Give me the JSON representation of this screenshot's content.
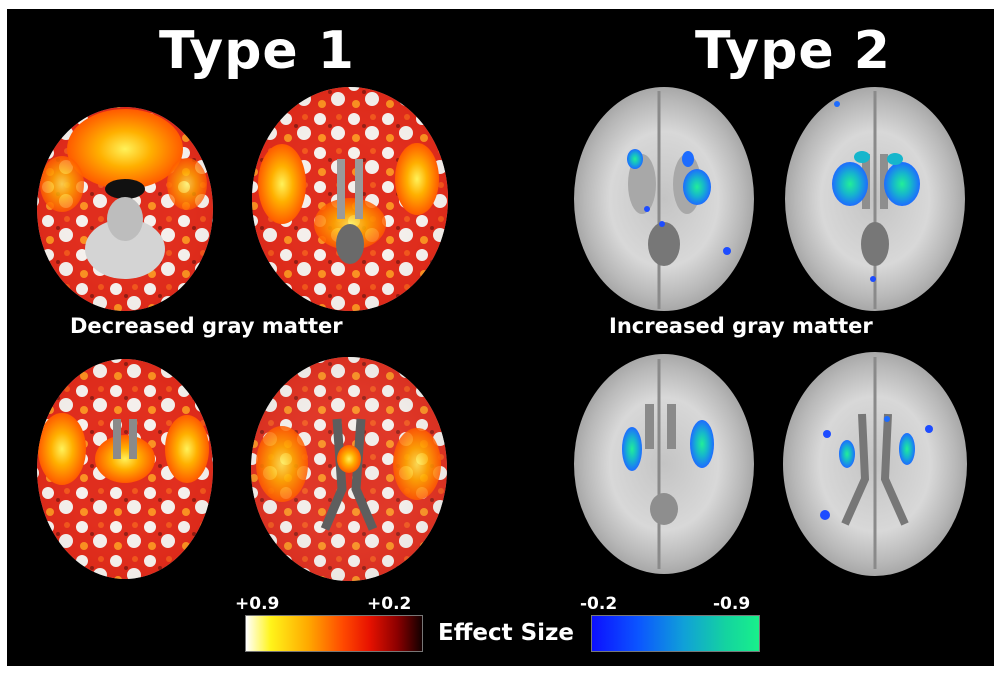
{
  "groups": [
    {
      "title": "Type 1",
      "subtitle": "Decreased gray matter",
      "scale": {
        "min_label": "+0.9",
        "max_label": "+0.2"
      }
    },
    {
      "title": "Type 2",
      "subtitle": "Increased gray matter",
      "scale": {
        "min_label": "-0.2",
        "max_label": "-0.9"
      }
    }
  ],
  "colorbar_label": "Effect Size",
  "colors": {
    "background": "#000000",
    "warm_scale": [
      "#ffffff",
      "#fff41a",
      "#ffaa00",
      "#ff4a00",
      "#e81200",
      "#8c0000",
      "#120000"
    ],
    "cool_scale": [
      "#0d10ff",
      "#0b56ff",
      "#10a0d8",
      "#14d3a0",
      "#18f08a"
    ]
  }
}
